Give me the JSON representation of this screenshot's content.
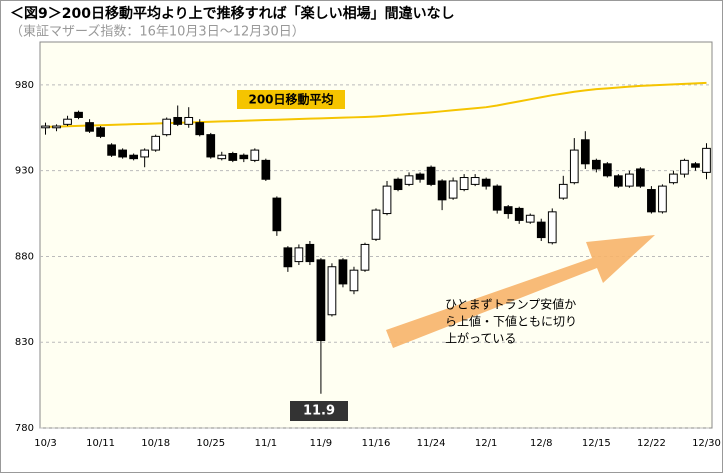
{
  "chart_data": {
    "type": "candlestick",
    "title": "＜図9＞200日移動平均より上で推移すれば「楽しい相場」間違いなし",
    "subtitle": "（東証マザーズ指数：16年10月3日～12月30日）",
    "categories": [
      "10/3",
      null,
      null,
      null,
      null,
      "10/11",
      null,
      null,
      null,
      null,
      "10/18",
      null,
      null,
      null,
      null,
      "10/25",
      null,
      null,
      null,
      null,
      "11/1",
      null,
      null,
      null,
      null,
      "11/9",
      null,
      null,
      null,
      null,
      "11/16",
      null,
      null,
      null,
      null,
      "11/24",
      null,
      null,
      null,
      null,
      "12/1",
      null,
      null,
      null,
      null,
      "12/8",
      null,
      null,
      null,
      null,
      "12/15",
      null,
      null,
      null,
      null,
      "12/22",
      null,
      null,
      null,
      null,
      "12/30"
    ],
    "open": [
      955,
      955,
      957,
      964,
      958,
      955,
      945,
      942,
      939,
      938,
      942,
      951,
      961,
      957,
      958,
      951,
      937,
      940,
      939,
      936,
      936,
      914,
      885,
      877,
      887,
      878,
      846,
      878,
      860,
      872,
      890,
      905,
      925,
      922,
      928,
      932,
      924,
      914,
      919,
      922,
      925,
      921,
      909,
      908,
      900,
      900,
      888,
      914,
      923,
      948,
      936,
      934,
      927,
      921,
      931,
      919,
      906,
      923,
      928,
      934,
      929
    ],
    "high": [
      958,
      957,
      962,
      965,
      960,
      956,
      946,
      943,
      940,
      943,
      951,
      961,
      968,
      967,
      960,
      952,
      941,
      941,
      940,
      943,
      937,
      915,
      886,
      887,
      889,
      879,
      876,
      879,
      874,
      888,
      908,
      924,
      926,
      929,
      929,
      933,
      925,
      926,
      928,
      928,
      926,
      922,
      910,
      909,
      905,
      902,
      908,
      927,
      949,
      953,
      937,
      935,
      928,
      930,
      932,
      921,
      922,
      930,
      937,
      935,
      946
    ],
    "low": [
      951,
      953,
      956,
      960,
      952,
      949,
      938,
      937,
      936,
      932,
      941,
      950,
      956,
      955,
      950,
      937,
      936,
      935,
      935,
      935,
      924,
      892,
      871,
      875,
      875,
      800,
      845,
      862,
      858,
      871,
      889,
      904,
      918,
      921,
      923,
      921,
      907,
      913,
      918,
      921,
      919,
      905,
      902,
      899,
      899,
      889,
      887,
      913,
      922,
      931,
      929,
      926,
      920,
      920,
      920,
      905,
      905,
      922,
      926,
      930,
      925
    ],
    "close": [
      956,
      956,
      960,
      961,
      953,
      950,
      939,
      938,
      937,
      942,
      950,
      960,
      957,
      961,
      951,
      938,
      939,
      936,
      937,
      942,
      925,
      895,
      874,
      885,
      877,
      831,
      874,
      864,
      872,
      887,
      907,
      921,
      919,
      927,
      925,
      922,
      913,
      924,
      926,
      926,
      921,
      907,
      905,
      901,
      904,
      891,
      906,
      922,
      942,
      934,
      931,
      927,
      921,
      928,
      921,
      906,
      921,
      928,
      936,
      932,
      943
    ],
    "up_color": "#ffffff",
    "down_color": "#000000",
    "moving_average": {
      "name": "200日移動平均",
      "color": "#f5c400",
      "values": [
        955.5,
        955.7,
        955.9,
        956.1,
        956.3,
        956.5,
        956.7,
        956.9,
        957.1,
        957.3,
        957.5,
        957.7,
        957.9,
        958.1,
        958.3,
        958.5,
        958.7,
        958.9,
        959.1,
        959.3,
        959.5,
        959.7,
        959.9,
        960.1,
        960.3,
        960.5,
        960.7,
        960.9,
        961.1,
        961.3,
        961.6,
        962,
        962.5,
        963,
        963.5,
        964,
        964.6,
        965.2,
        965.8,
        966.4,
        967,
        968,
        969.2,
        970.4,
        971.6,
        972.8,
        974,
        975,
        976,
        976.8,
        977.5,
        978,
        978.5,
        979,
        979.4,
        979.7,
        980,
        980.3,
        980.6,
        980.9,
        981.2
      ]
    },
    "low_label": "11.9",
    "arrow_note": [
      "ひとまずトランプ安値か",
      "ら上値・下値ともに切り",
      "上がっている"
    ],
    "ylim": [
      780,
      1005
    ],
    "yticks": [
      780,
      830,
      880,
      930,
      980
    ],
    "grid": true
  }
}
